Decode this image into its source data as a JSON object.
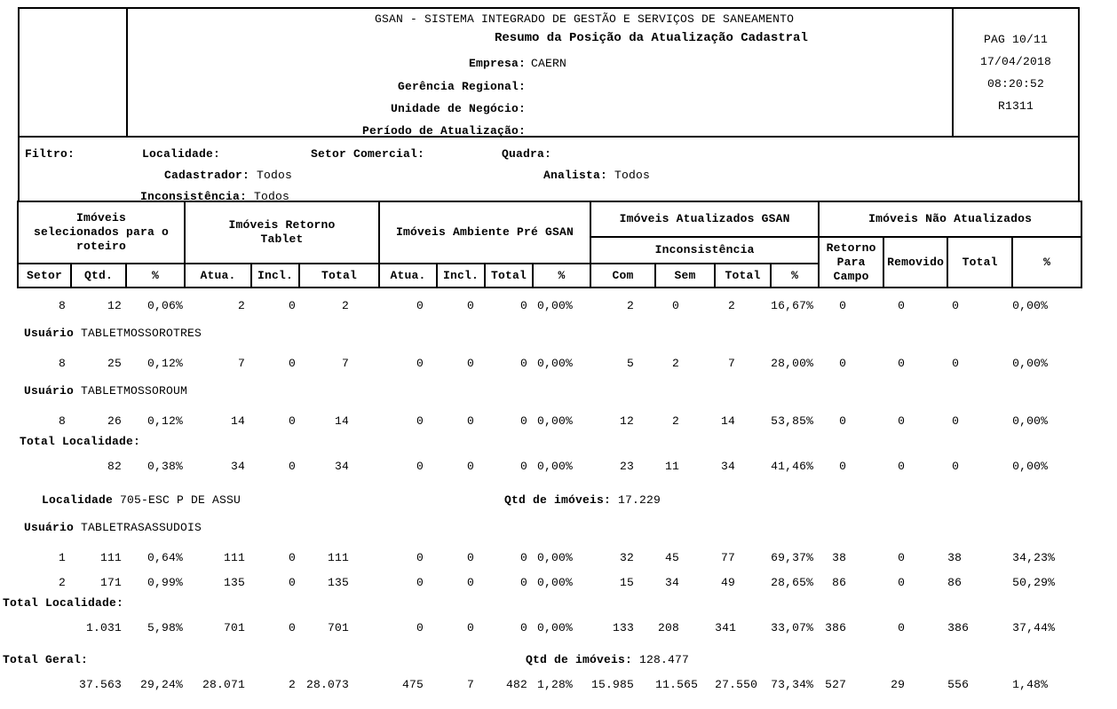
{
  "header": {
    "system_title": "GSAN - SISTEMA INTEGRADO DE GESTÃO E SERVIÇOS DE SANEAMENTO",
    "report_title": "Resumo da Posição da Atualização Cadastral",
    "fields": [
      {
        "label": "Empresa:",
        "value": "CAERN"
      },
      {
        "label": "Gerência Regional:",
        "value": ""
      },
      {
        "label": "Unidade de Negócio:",
        "value": ""
      },
      {
        "label": "Período de Atualização:",
        "value": ""
      }
    ],
    "page": "PAG 10/11",
    "date": "17/04/2018",
    "time": "08:20:52",
    "report_code": "R1311"
  },
  "filter": {
    "title": "Filtro:",
    "localidade": {
      "label": "Localidade:",
      "value": ""
    },
    "setor_comercial": {
      "label": "Setor Comercial:",
      "value": ""
    },
    "quadra": {
      "label": "Quadra:",
      "value": ""
    },
    "cadastrador": {
      "label": "Cadastrador:",
      "value": "Todos"
    },
    "analista": {
      "label": "Analista:",
      "value": "Todos"
    },
    "inconsistencia": {
      "label": "Inconsistência:",
      "value": "Todos"
    }
  },
  "table": {
    "groups": [
      {
        "label": "Imóveis\nselecionados para o\nroteiro"
      },
      {
        "label": "Imóveis Retorno\nTablet"
      },
      {
        "label": "Imóveis Ambiente Pré GSAN"
      },
      {
        "label": "Imóveis Atualizados GSAN",
        "subheader": "Inconsistência"
      },
      {
        "label": "Imóveis Não Atualizados"
      }
    ],
    "columns": [
      "Setor",
      "Qtd.",
      "%",
      "Atua.",
      "Incl.",
      "Total",
      "Atua.",
      "Incl.",
      "Total",
      "%",
      "Com",
      "Sem",
      "Total",
      "%",
      "Retorno\nPara\nCampo",
      "Removido",
      "Total",
      "%"
    ],
    "rows": [
      {
        "type": "data",
        "cells": [
          "8",
          "12",
          "0,06%",
          "2",
          "0",
          "2",
          "0",
          "0",
          "0",
          "0,00%",
          "2",
          "0",
          "2",
          "16,67%",
          "0",
          "0",
          "0",
          "0,00%"
        ]
      },
      {
        "type": "user",
        "label": "Usuário",
        "value": "TABLETMOSSOROTRES"
      },
      {
        "type": "data",
        "cells": [
          "8",
          "25",
          "0,12%",
          "7",
          "0",
          "7",
          "0",
          "0",
          "0",
          "0,00%",
          "5",
          "2",
          "7",
          "28,00%",
          "0",
          "0",
          "0",
          "0,00%"
        ]
      },
      {
        "type": "user",
        "label": "Usuário",
        "value": "TABLETMOSSOROUM"
      },
      {
        "type": "data",
        "cells": [
          "8",
          "26",
          "0,12%",
          "14",
          "0",
          "14",
          "0",
          "0",
          "0",
          "0,00%",
          "12",
          "2",
          "14",
          "53,85%",
          "0",
          "0",
          "0",
          "0,00%"
        ]
      },
      {
        "type": "label",
        "label": "Total Localidade:"
      },
      {
        "type": "data",
        "cells": [
          "",
          "82",
          "0,38%",
          "34",
          "0",
          "34",
          "0",
          "0",
          "0",
          "0,00%",
          "23",
          "11",
          "34",
          "41,46%",
          "0",
          "0",
          "0",
          "0,00%"
        ]
      },
      {
        "type": "localidade",
        "label": "Localidade",
        "value": "705-ESC P DE ASSU",
        "qtd_label": "Qtd de imóveis:",
        "qtd_value": "17.229"
      },
      {
        "type": "user",
        "label": "Usuário",
        "value": "TABLETRASASSUDOIS"
      },
      {
        "type": "data",
        "cells": [
          "1",
          "111",
          "0,64%",
          "111",
          "0",
          "111",
          "0",
          "0",
          "0",
          "0,00%",
          "32",
          "45",
          "77",
          "69,37%",
          "38",
          "0",
          "38",
          "34,23%"
        ]
      },
      {
        "type": "data",
        "cells": [
          "2",
          "171",
          "0,99%",
          "135",
          "0",
          "135",
          "0",
          "0",
          "0",
          "0,00%",
          "15",
          "34",
          "49",
          "28,65%",
          "86",
          "0",
          "86",
          "50,29%"
        ]
      },
      {
        "type": "label",
        "label": "Total Localidade:"
      },
      {
        "type": "data",
        "cells": [
          "",
          "1.031",
          "5,98%",
          "701",
          "0",
          "701",
          "0",
          "0",
          "0",
          "0,00%",
          "133",
          "208",
          "341",
          "33,07%",
          "386",
          "0",
          "386",
          "37,44%"
        ]
      },
      {
        "type": "totalgeral",
        "label": "Total Geral:",
        "qtd_label": "Qtd de imóveis:",
        "qtd_value": "128.477"
      },
      {
        "type": "data",
        "cells": [
          "",
          "37.563",
          "29,24%",
          "28.071",
          "2",
          "28.073",
          "475",
          "7",
          "482",
          "1,28%",
          "15.985",
          "11.565",
          "27.550",
          "73,34%",
          "527",
          "29",
          "556",
          "1,48%"
        ]
      }
    ]
  }
}
